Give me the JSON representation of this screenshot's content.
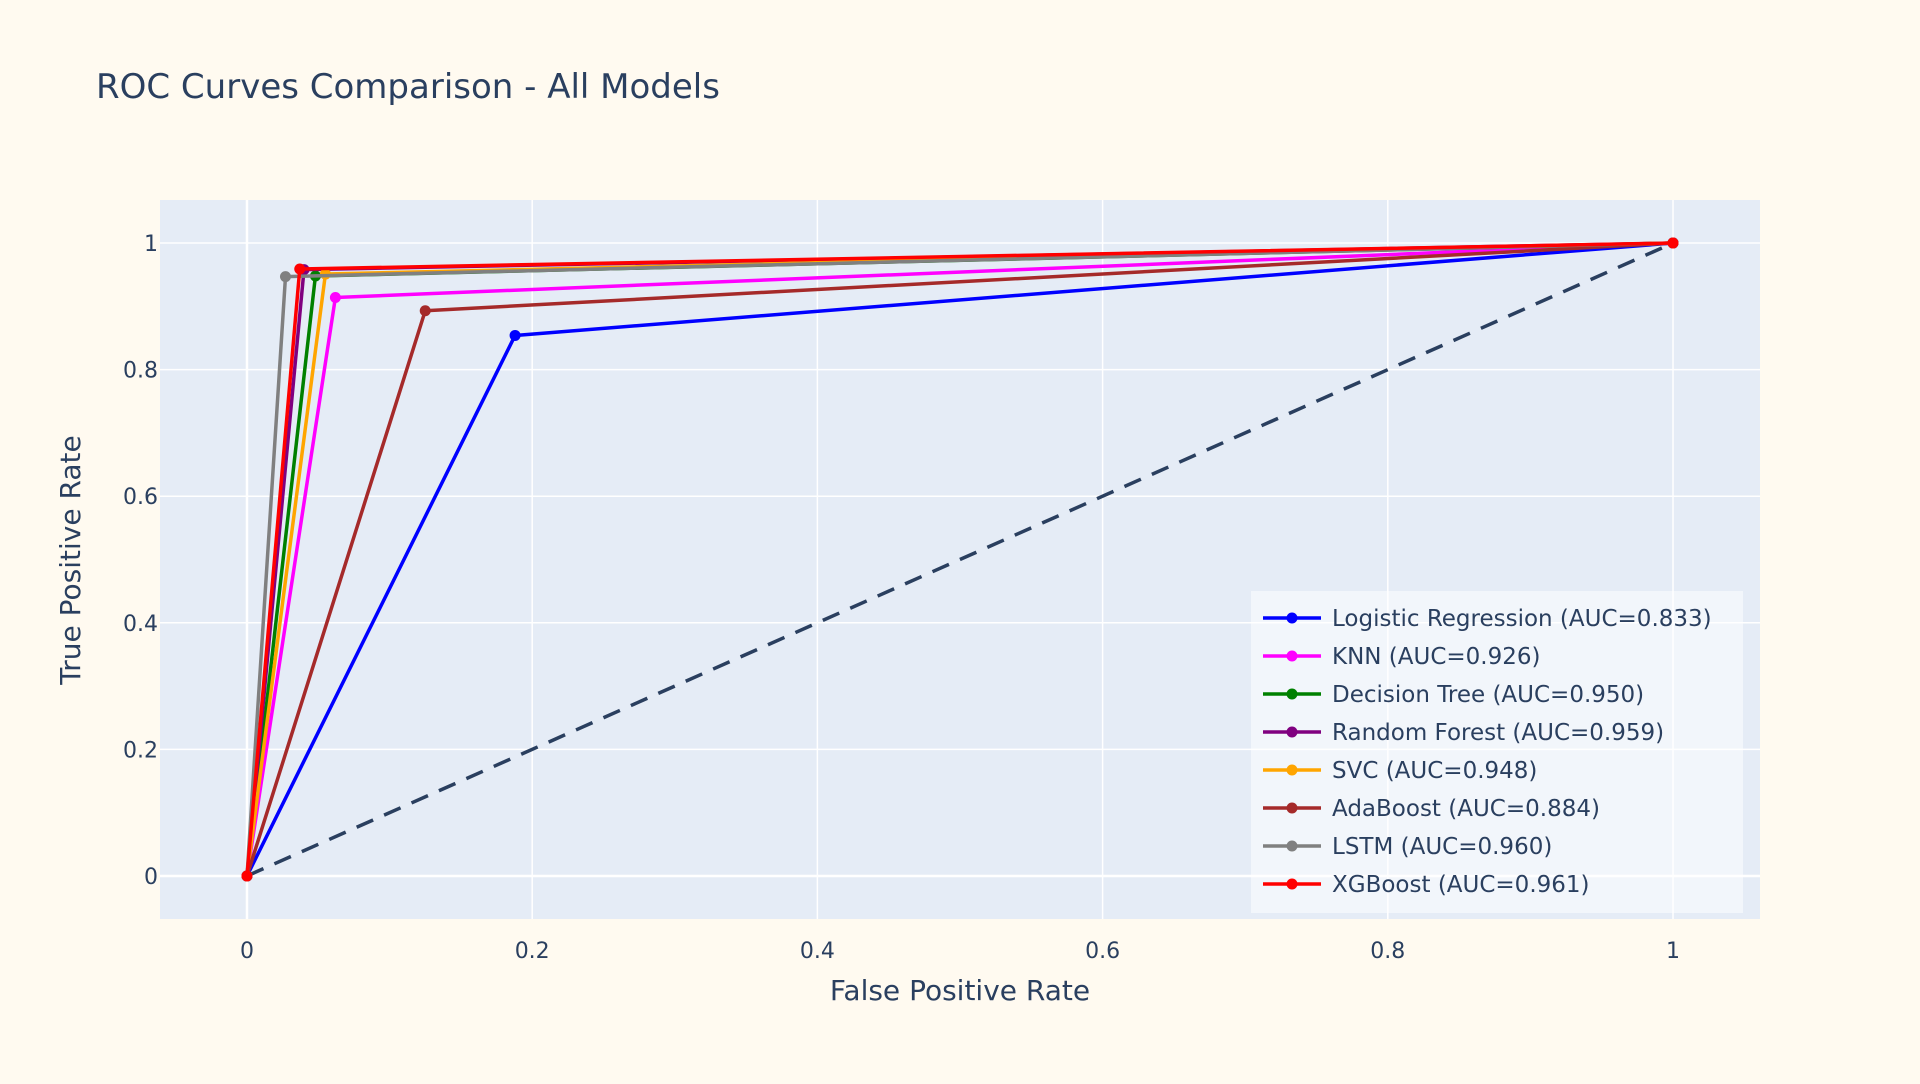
{
  "colors": {
    "page_background": "#fffaf0",
    "plot_background": "#e5ecf6",
    "grid": "#ffffff",
    "text": "#2a3f5f",
    "diagonal": "#2a3f5f"
  },
  "chart_data": {
    "type": "line",
    "title": "ROC Curves Comparison - All Models",
    "xlabel": "False Positive Rate",
    "ylabel": "True Positive Rate",
    "xlim": [
      -0.061,
      1.061
    ],
    "ylim": [
      -0.068,
      1.068
    ],
    "x_ticks": [
      0,
      0.2,
      0.4,
      0.6,
      0.8,
      1
    ],
    "x_tick_labels": [
      "0",
      "0.2",
      "0.4",
      "0.6",
      "0.8",
      "1"
    ],
    "y_ticks": [
      0,
      0.2,
      0.4,
      0.6,
      0.8,
      1
    ],
    "y_tick_labels": [
      "0",
      "0.2",
      "0.4",
      "0.6",
      "0.8",
      "1"
    ],
    "grid": true,
    "legend_position": "bottom-right",
    "reference_line": {
      "x": [
        0,
        1
      ],
      "y": [
        0,
        1
      ],
      "style": "dashed",
      "color": "#2a3f5f"
    },
    "series": [
      {
        "name": "Logistic Regression (AUC=0.833)",
        "color": "#0000ff",
        "x": [
          0,
          0.188,
          1
        ],
        "y": [
          0,
          0.854,
          1
        ]
      },
      {
        "name": "KNN (AUC=0.926)",
        "color": "#ff00ff",
        "x": [
          0,
          0.062,
          1
        ],
        "y": [
          0,
          0.914,
          1
        ]
      },
      {
        "name": "Decision Tree (AUC=0.950)",
        "color": "#008000",
        "x": [
          0,
          0.048,
          1
        ],
        "y": [
          0,
          0.948,
          1
        ]
      },
      {
        "name": "Random Forest (AUC=0.959)",
        "color": "#800080",
        "x": [
          0,
          0.04,
          1
        ],
        "y": [
          0,
          0.958,
          1
        ]
      },
      {
        "name": "SVC (AUC=0.948)",
        "color": "#ffa500",
        "x": [
          0,
          0.055,
          1
        ],
        "y": [
          0,
          0.951,
          1
        ]
      },
      {
        "name": "AdaBoost (AUC=0.884)",
        "color": "#a52a2a",
        "x": [
          0,
          0.125,
          1
        ],
        "y": [
          0,
          0.893,
          1
        ]
      },
      {
        "name": "LSTM (AUC=0.960)",
        "color": "#808080",
        "x": [
          0,
          0.027,
          1
        ],
        "y": [
          0,
          0.947,
          1
        ]
      },
      {
        "name": "XGBoost (AUC=0.961)",
        "color": "#ff0000",
        "x": [
          0,
          0.037,
          1
        ],
        "y": [
          0,
          0.959,
          1
        ]
      }
    ]
  }
}
